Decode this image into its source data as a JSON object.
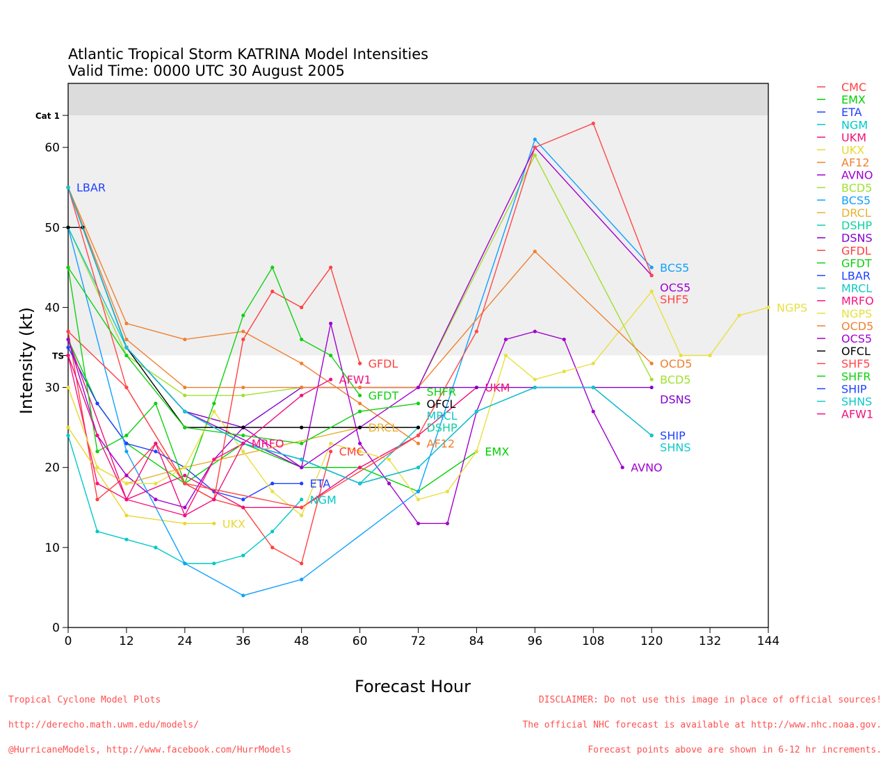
{
  "chart_data": {
    "type": "line",
    "title": "Atlantic Tropical Storm KATRINA Model Intensities",
    "subtitle": "Valid Time: 0000 UTC 30 August 2005",
    "xlabel": "Forecast Hour",
    "ylabel": "Intensity (kt)",
    "xlim": [
      0,
      144
    ],
    "ylim": [
      0,
      68
    ],
    "xticks": [
      0,
      12,
      24,
      36,
      48,
      60,
      72,
      84,
      96,
      108,
      120,
      132,
      144
    ],
    "yticks": [
      0,
      10,
      20,
      30,
      40,
      50,
      60
    ],
    "thresholds": [
      {
        "label": "Cat 1",
        "value": 64
      },
      {
        "label": "TS",
        "value": 34
      }
    ],
    "legend_position": "right",
    "series": [
      {
        "name": "CMC",
        "color": "#ff4040",
        "points": [
          [
            0,
            37
          ],
          [
            6,
            16
          ],
          [
            12,
            19
          ],
          [
            18,
            23
          ],
          [
            24,
            18
          ],
          [
            30,
            16
          ],
          [
            36,
            15
          ],
          [
            42,
            10
          ],
          [
            48,
            8
          ],
          [
            54,
            22
          ]
        ]
      },
      {
        "name": "EMX",
        "color": "#00d000",
        "points": [
          [
            0,
            36
          ],
          [
            6,
            28
          ],
          [
            12,
            23
          ],
          [
            24,
            18
          ],
          [
            36,
            23
          ],
          [
            48,
            20
          ],
          [
            60,
            20
          ],
          [
            72,
            17
          ],
          [
            84,
            22
          ]
        ]
      },
      {
        "name": "ETA",
        "color": "#2040ff",
        "points": [
          [
            0,
            35
          ],
          [
            6,
            28
          ],
          [
            12,
            23
          ],
          [
            18,
            22
          ],
          [
            24,
            20
          ],
          [
            30,
            17
          ],
          [
            36,
            16
          ],
          [
            42,
            18
          ],
          [
            48,
            18
          ]
        ]
      },
      {
        "name": "NGM",
        "color": "#00c8c8",
        "points": [
          [
            0,
            24
          ],
          [
            6,
            12
          ],
          [
            12,
            11
          ],
          [
            18,
            10
          ],
          [
            24,
            8
          ],
          [
            30,
            8
          ],
          [
            36,
            9
          ],
          [
            42,
            12
          ],
          [
            48,
            16
          ]
        ]
      },
      {
        "name": "UKM",
        "color": "#f0107a",
        "points": [
          [
            0,
            36
          ],
          [
            12,
            16
          ],
          [
            24,
            19
          ],
          [
            36,
            15
          ],
          [
            48,
            15
          ],
          [
            60,
            20
          ],
          [
            72,
            24
          ],
          [
            84,
            30
          ]
        ]
      },
      {
        "name": "UKX",
        "color": "#e8d830",
        "points": [
          [
            0,
            25
          ],
          [
            12,
            14
          ],
          [
            24,
            13
          ],
          [
            30,
            13
          ]
        ]
      },
      {
        "name": "AF12",
        "color": "#f08030",
        "points": [
          [
            0,
            55
          ],
          [
            12,
            38
          ],
          [
            24,
            36
          ],
          [
            36,
            37
          ],
          [
            48,
            33
          ],
          [
            60,
            28
          ],
          [
            72,
            23
          ]
        ]
      },
      {
        "name": "AVNO",
        "color": "#a000d0",
        "points": [
          [
            0,
            36
          ],
          [
            6,
            24
          ],
          [
            12,
            19
          ],
          [
            18,
            16
          ],
          [
            24,
            15
          ],
          [
            30,
            21
          ],
          [
            36,
            25
          ],
          [
            48,
            20
          ],
          [
            54,
            38
          ],
          [
            60,
            23
          ],
          [
            66,
            18
          ],
          [
            72,
            13
          ],
          [
            78,
            13
          ],
          [
            84,
            27
          ],
          [
            90,
            36
          ],
          [
            96,
            37
          ],
          [
            102,
            36
          ],
          [
            108,
            27
          ],
          [
            114,
            20
          ]
        ]
      },
      {
        "name": "BCD5",
        "color": "#a0e030",
        "points": [
          [
            0,
            50
          ],
          [
            12,
            34
          ],
          [
            24,
            29
          ],
          [
            36,
            29
          ],
          [
            48,
            30
          ],
          [
            72,
            30
          ],
          [
            96,
            59
          ],
          [
            120,
            31
          ]
        ]
      },
      {
        "name": "BCS5",
        "color": "#10a0ff",
        "points": [
          [
            0,
            50
          ],
          [
            12,
            22
          ],
          [
            24,
            8
          ],
          [
            36,
            4
          ],
          [
            48,
            6
          ],
          [
            72,
            17
          ],
          [
            96,
            61
          ],
          [
            120,
            45
          ]
        ]
      },
      {
        "name": "DRCL",
        "color": "#e8b030",
        "points": [
          [
            0,
            30
          ],
          [
            6,
            20
          ],
          [
            12,
            18
          ],
          [
            24,
            20
          ],
          [
            60,
            25
          ]
        ]
      },
      {
        "name": "DSHP",
        "color": "#10d0a0",
        "points": [
          [
            0,
            55
          ],
          [
            12,
            35
          ],
          [
            24,
            27
          ],
          [
            36,
            23
          ],
          [
            48,
            21
          ],
          [
            60,
            18
          ],
          [
            72,
            25
          ]
        ]
      },
      {
        "name": "DSNS",
        "color": "#8000d0",
        "points": [
          [
            0,
            55
          ],
          [
            12,
            35
          ],
          [
            24,
            27
          ],
          [
            36,
            25
          ],
          [
            48,
            30
          ],
          [
            60,
            30
          ],
          [
            72,
            30
          ],
          [
            84,
            30
          ],
          [
            96,
            30
          ],
          [
            108,
            30
          ],
          [
            120,
            30
          ]
        ]
      },
      {
        "name": "GFDL",
        "color": "#ff4040",
        "points": [
          [
            0,
            37
          ],
          [
            12,
            30
          ],
          [
            24,
            18
          ],
          [
            30,
            16
          ],
          [
            36,
            36
          ],
          [
            42,
            42
          ],
          [
            48,
            40
          ],
          [
            54,
            45
          ],
          [
            60,
            33
          ]
        ]
      },
      {
        "name": "GFDT",
        "color": "#10d010",
        "points": [
          [
            0,
            45
          ],
          [
            6,
            22
          ],
          [
            12,
            24
          ],
          [
            18,
            28
          ],
          [
            24,
            18
          ],
          [
            30,
            28
          ],
          [
            36,
            39
          ],
          [
            42,
            45
          ],
          [
            48,
            36
          ],
          [
            54,
            34
          ],
          [
            60,
            29
          ]
        ]
      },
      {
        "name": "LBAR",
        "color": "#2040ff",
        "points": [
          [
            0,
            55
          ]
        ]
      },
      {
        "name": "MRCL",
        "color": "#10c8c8",
        "points": [
          [
            0,
            50
          ],
          [
            12,
            35
          ],
          [
            24,
            27
          ],
          [
            36,
            23
          ],
          [
            48,
            21
          ],
          [
            60,
            18
          ],
          [
            72,
            25
          ]
        ]
      },
      {
        "name": "MRFO",
        "color": "#ff1080",
        "points": [
          [
            0,
            34
          ],
          [
            6,
            18
          ],
          [
            12,
            16
          ],
          [
            24,
            14
          ],
          [
            30,
            21
          ],
          [
            36,
            23
          ]
        ]
      },
      {
        "name": "NGPS",
        "color": "#e8e040",
        "points": [
          [
            0,
            30
          ],
          [
            6,
            20
          ],
          [
            12,
            18
          ],
          [
            18,
            18
          ],
          [
            24,
            20
          ],
          [
            30,
            27
          ],
          [
            36,
            22
          ],
          [
            42,
            17
          ],
          [
            48,
            14
          ],
          [
            54,
            23
          ],
          [
            60,
            22
          ],
          [
            66,
            21
          ],
          [
            72,
            16
          ],
          [
            78,
            17
          ],
          [
            84,
            22
          ],
          [
            90,
            34
          ],
          [
            96,
            31
          ],
          [
            102,
            32
          ],
          [
            108,
            33
          ],
          [
            120,
            42
          ],
          [
            126,
            34
          ],
          [
            132,
            34
          ],
          [
            138,
            39
          ],
          [
            144,
            40
          ]
        ]
      },
      {
        "name": "OCD5",
        "color": "#f08030",
        "points": [
          [
            0,
            55
          ],
          [
            12,
            36
          ],
          [
            24,
            30
          ],
          [
            36,
            30
          ],
          [
            48,
            30
          ],
          [
            60,
            30
          ],
          [
            72,
            30
          ],
          [
            96,
            47
          ],
          [
            120,
            33
          ]
        ]
      },
      {
        "name": "OCS5",
        "color": "#a000d0",
        "points": [
          [
            0,
            55
          ],
          [
            12,
            35
          ],
          [
            24,
            27
          ],
          [
            48,
            20
          ],
          [
            72,
            30
          ],
          [
            96,
            60
          ],
          [
            120,
            44
          ]
        ]
      },
      {
        "name": "OFCL",
        "color": "#000000",
        "points": [
          [
            0,
            50
          ],
          [
            3,
            50
          ],
          [
            12,
            35
          ],
          [
            24,
            25
          ],
          [
            36,
            25
          ],
          [
            48,
            25
          ],
          [
            60,
            25
          ],
          [
            72,
            25
          ]
        ]
      },
      {
        "name": "SHF5",
        "color": "#ff4848",
        "points": [
          [
            0,
            55
          ],
          [
            12,
            30
          ],
          [
            24,
            18
          ],
          [
            48,
            15
          ],
          [
            72,
            24
          ],
          [
            84,
            37
          ],
          [
            96,
            60
          ],
          [
            108,
            63
          ],
          [
            120,
            44
          ]
        ]
      },
      {
        "name": "SHFR",
        "color": "#10d010",
        "points": [
          [
            0,
            45
          ],
          [
            12,
            34
          ],
          [
            24,
            25
          ],
          [
            36,
            24
          ],
          [
            48,
            23
          ],
          [
            60,
            27
          ],
          [
            72,
            28
          ]
        ]
      },
      {
        "name": "SHIP",
        "color": "#2040ff",
        "points": [
          [
            0,
            55
          ],
          [
            12,
            35
          ],
          [
            24,
            27
          ],
          [
            36,
            23
          ],
          [
            48,
            21
          ],
          [
            60,
            18
          ],
          [
            72,
            20
          ],
          [
            84,
            27
          ],
          [
            96,
            30
          ],
          [
            108,
            30
          ],
          [
            120,
            24
          ]
        ]
      },
      {
        "name": "SHNS",
        "color": "#10c8c8",
        "points": [
          [
            0,
            55
          ],
          [
            12,
            35
          ],
          [
            24,
            27
          ],
          [
            36,
            23
          ],
          [
            48,
            21
          ],
          [
            60,
            18
          ],
          [
            72,
            20
          ],
          [
            84,
            27
          ],
          [
            96,
            30
          ],
          [
            108,
            30
          ],
          [
            120,
            24
          ]
        ]
      },
      {
        "name": "AFW1",
        "color": "#f01080",
        "points": [
          [
            0,
            34
          ],
          [
            6,
            24
          ],
          [
            12,
            16
          ],
          [
            18,
            23
          ],
          [
            24,
            14
          ],
          [
            30,
            16
          ],
          [
            36,
            23
          ],
          [
            48,
            29
          ],
          [
            54,
            31
          ]
        ]
      }
    ]
  },
  "footer": {
    "left": [
      "Tropical Cyclone Model Plots",
      "http://derecho.math.uwm.edu/models/",
      "@HurricaneModels, http://www.facebook.com/HurrModels"
    ],
    "right": [
      "DISCLAIMER: Do not use this image in place of official sources!",
      "The official NHC forecast is available at http://www.nhc.noaa.gov.",
      "Forecast points above are shown in 6-12 hr increments."
    ]
  }
}
